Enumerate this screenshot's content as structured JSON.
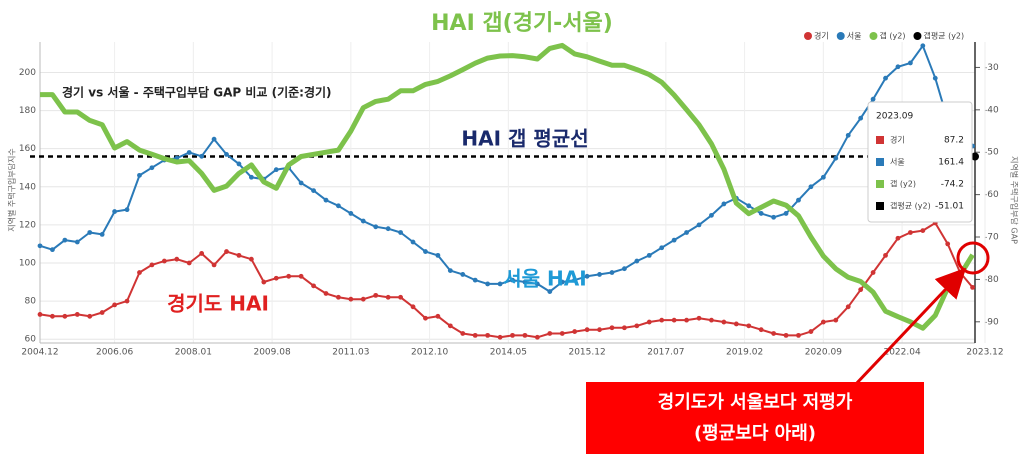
{
  "chart_data": {
    "type": "line",
    "title": "경기 vs 서울 - 주택구입부담 GAP 비교 (기준:경기)",
    "y_label": "지역별 주택구입부담지수",
    "y2_label": "지역별 주택구입부담 GAP",
    "annotations": [
      "HAI 갭(경기-서울)",
      "HAI 갭 평균선",
      "서울 HAI",
      "경기도 HAI",
      "경기도가 서울보다 저평가",
      "(평균보다 아래)"
    ],
    "x": [
      "2004.12",
      "2005.03",
      "2005.06",
      "2005.09",
      "2005.12",
      "2006.03",
      "2006.06",
      "2006.09",
      "2006.12",
      "2007.03",
      "2007.06",
      "2007.09",
      "2007.12",
      "2008.03",
      "2008.06",
      "2008.09",
      "2008.12",
      "2009.03",
      "2009.06",
      "2009.09",
      "2009.12",
      "2010.03",
      "2010.06",
      "2010.09",
      "2010.12",
      "2011.03",
      "2011.06",
      "2011.09",
      "2011.12",
      "2012.03",
      "2012.06",
      "2012.09",
      "2012.12",
      "2013.03",
      "2013.06",
      "2013.09",
      "2013.12",
      "2014.03",
      "2014.06",
      "2014.09",
      "2014.12",
      "2015.03",
      "2015.06",
      "2015.09",
      "2015.12",
      "2016.03",
      "2016.06",
      "2016.09",
      "2016.12",
      "2017.03",
      "2017.06",
      "2017.09",
      "2017.12",
      "2018.03",
      "2018.06",
      "2018.09",
      "2018.12",
      "2019.03",
      "2019.06",
      "2019.09",
      "2019.12",
      "2020.03",
      "2020.06",
      "2020.09",
      "2020.12",
      "2021.03",
      "2021.06",
      "2021.09",
      "2021.12",
      "2022.03",
      "2022.06",
      "2022.09",
      "2022.12",
      "2023.03",
      "2023.06",
      "2023.09"
    ],
    "series": [
      {
        "name": "경기",
        "color": "#d03434",
        "values": [
          73,
          72,
          72,
          73,
          72,
          74,
          78,
          80,
          95,
          99,
          101,
          102,
          100,
          105,
          99,
          106,
          104,
          102,
          90,
          92,
          93,
          93,
          88,
          84,
          82,
          81,
          81,
          83,
          82,
          82,
          77,
          71,
          72,
          67,
          63,
          62,
          62,
          61,
          62,
          62,
          61,
          63,
          63,
          64,
          65,
          65,
          66,
          66,
          67,
          69,
          70,
          70,
          70,
          71,
          70,
          69,
          68,
          67,
          65,
          63,
          62,
          62,
          64,
          69,
          70,
          77,
          86,
          95,
          104,
          113,
          116,
          117,
          121,
          110,
          95,
          87.2
        ]
      },
      {
        "name": "서울",
        "color": "#2a7ab8",
        "values": [
          109,
          107,
          112,
          111,
          116,
          115,
          127,
          128,
          146,
          150,
          154,
          155,
          158,
          156,
          165,
          157,
          152,
          145,
          144,
          149,
          150,
          142,
          138,
          133,
          130,
          126,
          122,
          119,
          118,
          116,
          111,
          106,
          104,
          96,
          94,
          91,
          89,
          89,
          91,
          90,
          89,
          85,
          90,
          91,
          93,
          94,
          95,
          97,
          101,
          104,
          108,
          112,
          116,
          120,
          125,
          131,
          134,
          130,
          126,
          124,
          126,
          133,
          140,
          145,
          155,
          167,
          176,
          186,
          197,
          203,
          205,
          214,
          197,
          175,
          165,
          161.4
        ]
      },
      {
        "name": "갭 (y2)",
        "color": "#7dc24b",
        "axis": "y2",
        "values": [
          -36.4,
          -36.4,
          -40.5,
          -40.5,
          -42.5,
          -43.5,
          -49,
          -47.5,
          -49.5,
          -50.5,
          -51.5,
          -52.3,
          -52,
          -55,
          -59,
          -58,
          -55,
          -53,
          -57,
          -58.5,
          -53,
          -51,
          -50.5,
          -50,
          -49.5,
          -45,
          -39.5,
          -38,
          -37.5,
          -35.5,
          -35.5,
          -34,
          -33.3,
          -32,
          -30.5,
          -29,
          -27.8,
          -27.3,
          -27.2,
          -27.5,
          -28,
          -25.5,
          -24.8,
          -26.8,
          -27.5,
          -28.5,
          -29.5,
          -29.5,
          -30.5,
          -31.7,
          -33.5,
          -36.5,
          -40,
          -43.5,
          -48,
          -54,
          -62,
          -64.5,
          -63,
          -61.5,
          -62.5,
          -65,
          -70,
          -74.5,
          -77.5,
          -79.5,
          -80.5,
          -83,
          -87.5,
          -88.8,
          -90,
          -91.5,
          -88.5,
          -82,
          -79,
          -74.2
        ]
      }
    ],
    "hline": {
      "name": "갭평균 (y2)",
      "color": "#000000",
      "axis": "y2",
      "value": -51.01
    },
    "xticks": [
      "2004.12",
      "2006.06",
      "2008.01",
      "2009.08",
      "2011.03",
      "2012.10",
      "2014.05",
      "2015.12",
      "2017.07",
      "2019.02",
      "2020.09",
      "2022.04",
      "2023.12"
    ],
    "ylim": [
      58,
      216
    ],
    "yticks": [
      60,
      80,
      100,
      120,
      140,
      160,
      180,
      200
    ],
    "y2lim": [
      -95,
      -24
    ],
    "y2ticks": [
      -30,
      -40,
      -50,
      -60,
      -70,
      -80,
      -90
    ],
    "grid": true
  }
}
